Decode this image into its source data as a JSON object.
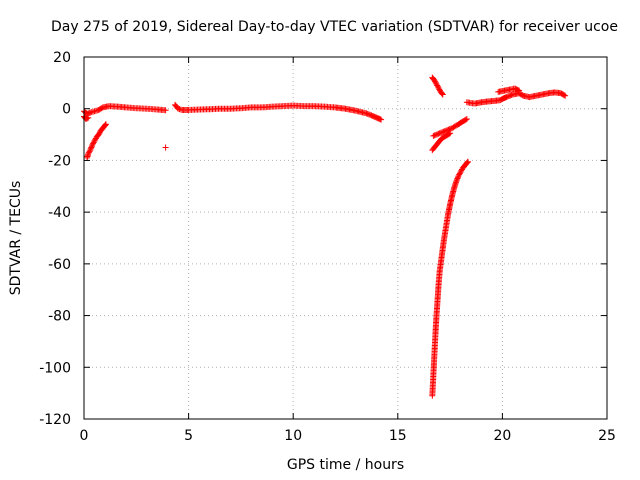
{
  "chart_data": {
    "type": "scatter",
    "title": "Day 275 of 2019, Sidereal Day-to-day VTEC variation (SDTVAR) for receiver ucoe",
    "xlabel": "GPS time / hours",
    "ylabel": "SDTVAR / TECUs",
    "xlim": [
      0,
      25
    ],
    "ylim": [
      -120,
      20
    ],
    "xticks": [
      0,
      5,
      10,
      15,
      20,
      25
    ],
    "yticks": [
      -120,
      -100,
      -80,
      -60,
      -40,
      -20,
      0,
      20
    ],
    "grid": true,
    "marker": "+",
    "color": "#ff0000",
    "series": [
      {
        "segments": [
          [
            [
              0.0,
              -1.0
            ],
            [
              0.15,
              -2.0
            ],
            [
              0.3,
              -1.5
            ],
            [
              0.5,
              -1.0
            ],
            [
              0.7,
              -0.5
            ],
            [
              0.9,
              0.5
            ],
            [
              1.2,
              1.0
            ],
            [
              1.6,
              0.8
            ],
            [
              2.0,
              0.5
            ],
            [
              2.5,
              0.2
            ],
            [
              3.0,
              0.0
            ],
            [
              3.5,
              -0.3
            ],
            [
              3.9,
              -0.6
            ]
          ],
          [
            [
              0.15,
              -19.0
            ],
            [
              0.2,
              -17.5
            ],
            [
              0.3,
              -16.0
            ],
            [
              0.4,
              -14.0
            ],
            [
              0.5,
              -12.5
            ],
            [
              0.6,
              -11.0
            ],
            [
              0.7,
              -10.0
            ],
            [
              0.8,
              -8.5
            ],
            [
              0.9,
              -7.5
            ],
            [
              1.0,
              -6.5
            ],
            [
              1.05,
              -6.0
            ]
          ],
          [
            [
              0.0,
              -3.0
            ],
            [
              0.1,
              -4.0
            ],
            [
              0.2,
              -3.5
            ]
          ],
          [
            [
              3.9,
              -15.0
            ]
          ],
          [
            [
              4.35,
              1.5
            ],
            [
              4.5,
              0.0
            ],
            [
              4.7,
              -0.5
            ],
            [
              5.0,
              -0.5
            ],
            [
              5.5,
              -0.3
            ],
            [
              6.0,
              -0.2
            ],
            [
              6.5,
              0.0
            ],
            [
              7.0,
              0.0
            ],
            [
              7.5,
              0.2
            ],
            [
              8.0,
              0.5
            ],
            [
              8.5,
              0.5
            ],
            [
              9.0,
              0.8
            ],
            [
              9.5,
              1.0
            ],
            [
              10.0,
              1.2
            ],
            [
              10.5,
              1.0
            ],
            [
              11.0,
              1.0
            ],
            [
              11.5,
              0.8
            ],
            [
              12.0,
              0.5
            ],
            [
              12.5,
              0.0
            ],
            [
              13.0,
              -0.8
            ],
            [
              13.5,
              -1.8
            ],
            [
              13.8,
              -2.8
            ],
            [
              14.0,
              -3.5
            ],
            [
              14.2,
              -4.2
            ]
          ],
          [
            [
              16.65,
              12.0
            ],
            [
              16.75,
              11.0
            ],
            [
              16.85,
              9.5
            ],
            [
              16.95,
              8.0
            ],
            [
              17.05,
              6.5
            ],
            [
              17.15,
              5.5
            ]
          ],
          [
            [
              16.7,
              -10.5
            ],
            [
              17.0,
              -9.5
            ],
            [
              17.3,
              -8.5
            ],
            [
              17.6,
              -7.5
            ],
            [
              17.9,
              -6.0
            ],
            [
              18.1,
              -5.0
            ],
            [
              18.3,
              -4.0
            ]
          ],
          [
            [
              16.65,
              -16.0
            ],
            [
              16.9,
              -13.5
            ],
            [
              17.1,
              -11.5
            ],
            [
              17.3,
              -10.5
            ],
            [
              17.5,
              -9.5
            ]
          ],
          [
            [
              16.65,
              -111.0
            ],
            [
              16.7,
              -103.0
            ],
            [
              16.75,
              -95.0
            ],
            [
              16.8,
              -87.0
            ],
            [
              16.85,
              -80.0
            ],
            [
              16.9,
              -74.0
            ],
            [
              16.95,
              -68.0
            ],
            [
              17.0,
              -63.0
            ],
            [
              17.1,
              -57.0
            ],
            [
              17.2,
              -51.0
            ],
            [
              17.3,
              -46.0
            ],
            [
              17.4,
              -41.0
            ],
            [
              17.5,
              -37.0
            ],
            [
              17.6,
              -33.5
            ],
            [
              17.7,
              -30.5
            ],
            [
              17.8,
              -28.0
            ],
            [
              17.9,
              -26.0
            ],
            [
              18.0,
              -24.5
            ],
            [
              18.1,
              -23.0
            ],
            [
              18.2,
              -22.0
            ],
            [
              18.3,
              -21.0
            ],
            [
              18.35,
              -20.5
            ]
          ],
          [
            [
              18.3,
              2.5
            ],
            [
              18.5,
              2.2
            ],
            [
              18.7,
              2.0
            ],
            [
              19.0,
              2.5
            ],
            [
              19.3,
              2.8
            ],
            [
              19.6,
              3.0
            ],
            [
              19.9,
              3.3
            ],
            [
              20.0,
              3.8
            ],
            [
              20.2,
              4.5
            ],
            [
              20.5,
              5.5
            ],
            [
              20.8,
              6.0
            ],
            [
              21.0,
              5.0
            ],
            [
              21.3,
              4.5
            ],
            [
              21.6,
              5.0
            ],
            [
              21.9,
              5.5
            ],
            [
              22.2,
              6.0
            ],
            [
              22.5,
              6.3
            ],
            [
              22.8,
              6.0
            ],
            [
              23.0,
              5.0
            ]
          ],
          [
            [
              19.8,
              6.5
            ],
            [
              20.1,
              7.0
            ],
            [
              20.4,
              7.5
            ],
            [
              20.6,
              7.8
            ],
            [
              20.8,
              7.0
            ]
          ]
        ]
      }
    ]
  }
}
